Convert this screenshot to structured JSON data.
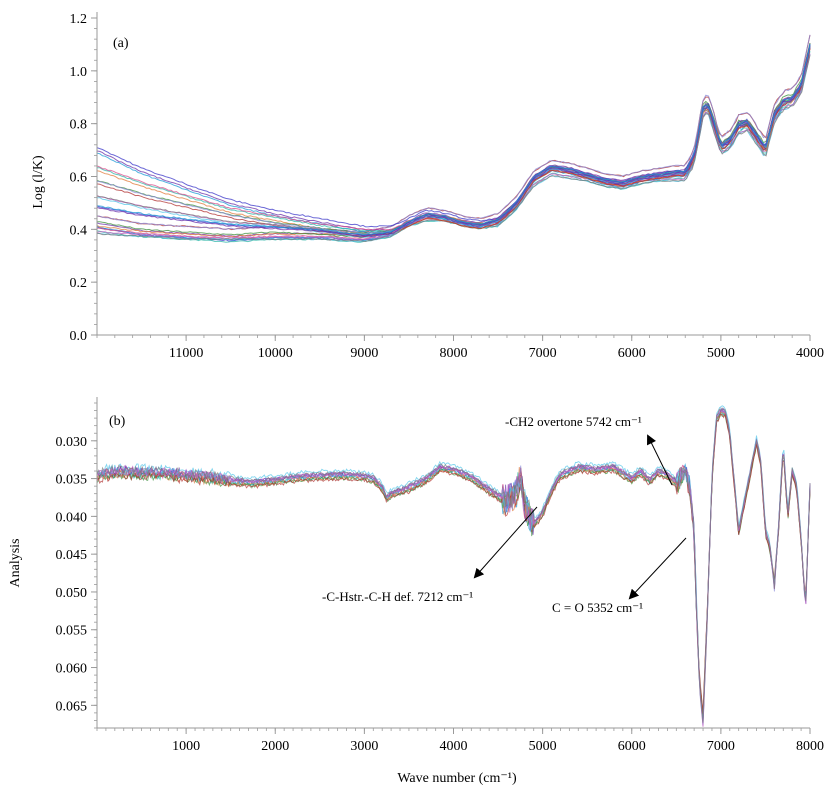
{
  "chart_data": [
    {
      "type": "line",
      "panel_label": "(a)",
      "ylabel": "Log (l/K)",
      "xlabel": "",
      "xlim": [
        12000,
        4000
      ],
      "ylim": [
        0,
        1.2
      ],
      "x_reversed": true,
      "x_ticks": [
        11000,
        10000,
        9000,
        8000,
        7000,
        6000,
        5000,
        4000
      ],
      "x_tick_labels": [
        "11000",
        "10000",
        "9000",
        "8000",
        "7000",
        "6000",
        "5000",
        "4000"
      ],
      "y_ticks": [
        0,
        0.2,
        0.4,
        0.6,
        0.8,
        1.0,
        1.2
      ],
      "y_tick_labels": [
        "0.0",
        "0.2",
        "0.4",
        "0.6",
        "0.8",
        "1.0",
        "1.2"
      ],
      "grid": false,
      "series_description": "Many overlapping NIR spectra (~30 samples)",
      "x": [
        12000,
        11500,
        11000,
        10500,
        10000,
        9500,
        9000,
        8700,
        8500,
        8300,
        8100,
        7900,
        7700,
        7500,
        7300,
        7100,
        6900,
        6700,
        6500,
        6300,
        6100,
        5900,
        5700,
        5500,
        5400,
        5300,
        5200,
        5150,
        5100,
        5000,
        4900,
        4800,
        4700,
        4600,
        4500,
        4400,
        4300,
        4200,
        4100,
        4000
      ],
      "series": [
        {
          "values": [
            0.42,
            0.39,
            0.38,
            0.37,
            0.38,
            0.38,
            0.37,
            0.39,
            0.43,
            0.46,
            0.45,
            0.43,
            0.42,
            0.44,
            0.5,
            0.6,
            0.64,
            0.63,
            0.61,
            0.59,
            0.58,
            0.6,
            0.61,
            0.62,
            0.62,
            0.68,
            0.86,
            0.88,
            0.83,
            0.72,
            0.74,
            0.8,
            0.81,
            0.76,
            0.71,
            0.84,
            0.89,
            0.9,
            0.95,
            1.1
          ]
        },
        {
          "values": [
            0.4,
            0.38,
            0.37,
            0.36,
            0.37,
            0.37,
            0.36,
            0.38,
            0.42,
            0.44,
            0.44,
            0.42,
            0.41,
            0.42,
            0.48,
            0.58,
            0.62,
            0.61,
            0.59,
            0.57,
            0.56,
            0.58,
            0.59,
            0.6,
            0.6,
            0.66,
            0.84,
            0.86,
            0.81,
            0.7,
            0.72,
            0.78,
            0.79,
            0.74,
            0.69,
            0.82,
            0.87,
            0.88,
            0.93,
            1.08
          ]
        },
        {
          "values": [
            0.44,
            0.41,
            0.4,
            0.39,
            0.4,
            0.39,
            0.38,
            0.4,
            0.44,
            0.47,
            0.46,
            0.44,
            0.43,
            0.45,
            0.51,
            0.61,
            0.65,
            0.64,
            0.62,
            0.6,
            0.59,
            0.61,
            0.62,
            0.63,
            0.63,
            0.69,
            0.88,
            0.9,
            0.85,
            0.74,
            0.76,
            0.82,
            0.83,
            0.78,
            0.73,
            0.86,
            0.91,
            0.92,
            0.97,
            1.12
          ]
        },
        {
          "values": [
            0.38,
            0.37,
            0.36,
            0.36,
            0.36,
            0.36,
            0.35,
            0.37,
            0.41,
            0.43,
            0.43,
            0.41,
            0.4,
            0.41,
            0.47,
            0.56,
            0.6,
            0.59,
            0.58,
            0.56,
            0.55,
            0.57,
            0.58,
            0.58,
            0.58,
            0.64,
            0.82,
            0.84,
            0.79,
            0.68,
            0.7,
            0.76,
            0.77,
            0.72,
            0.67,
            0.8,
            0.85,
            0.86,
            0.91,
            1.06
          ]
        },
        {
          "values": [
            0.7,
            0.62,
            0.56,
            0.5,
            0.46,
            0.43,
            0.4,
            0.4,
            0.43,
            0.46,
            0.45,
            0.43,
            0.42,
            0.43,
            0.49,
            0.59,
            0.63,
            0.62,
            0.6,
            0.58,
            0.57,
            0.59,
            0.6,
            0.61,
            0.61,
            0.67,
            0.85,
            0.87,
            0.82,
            0.71,
            0.73,
            0.79,
            0.8,
            0.75,
            0.7,
            0.83,
            0.88,
            0.89,
            0.94,
            1.09
          ]
        },
        {
          "values": [
            0.63,
            0.57,
            0.52,
            0.47,
            0.44,
            0.41,
            0.39,
            0.39,
            0.42,
            0.45,
            0.44,
            0.42,
            0.41,
            0.43,
            0.49,
            0.59,
            0.63,
            0.62,
            0.6,
            0.58,
            0.57,
            0.59,
            0.6,
            0.61,
            0.61,
            0.67,
            0.85,
            0.87,
            0.82,
            0.71,
            0.73,
            0.79,
            0.8,
            0.75,
            0.7,
            0.83,
            0.88,
            0.89,
            0.94,
            1.09
          ]
        },
        {
          "values": [
            0.58,
            0.53,
            0.49,
            0.45,
            0.42,
            0.4,
            0.38,
            0.39,
            0.42,
            0.45,
            0.44,
            0.42,
            0.41,
            0.43,
            0.49,
            0.59,
            0.63,
            0.62,
            0.6,
            0.58,
            0.57,
            0.59,
            0.6,
            0.61,
            0.61,
            0.67,
            0.85,
            0.87,
            0.82,
            0.71,
            0.73,
            0.79,
            0.8,
            0.75,
            0.7,
            0.83,
            0.88,
            0.89,
            0.94,
            1.09
          ]
        },
        {
          "values": [
            0.52,
            0.48,
            0.45,
            0.42,
            0.41,
            0.39,
            0.37,
            0.38,
            0.42,
            0.45,
            0.44,
            0.42,
            0.41,
            0.43,
            0.49,
            0.59,
            0.63,
            0.62,
            0.6,
            0.58,
            0.57,
            0.59,
            0.6,
            0.61,
            0.61,
            0.67,
            0.85,
            0.87,
            0.82,
            0.71,
            0.73,
            0.79,
            0.8,
            0.75,
            0.7,
            0.83,
            0.88,
            0.89,
            0.94,
            1.09
          ]
        },
        {
          "values": [
            0.48,
            0.45,
            0.43,
            0.41,
            0.4,
            0.39,
            0.37,
            0.38,
            0.42,
            0.45,
            0.44,
            0.42,
            0.41,
            0.43,
            0.49,
            0.59,
            0.63,
            0.62,
            0.6,
            0.58,
            0.57,
            0.59,
            0.6,
            0.61,
            0.61,
            0.67,
            0.85,
            0.87,
            0.82,
            0.71,
            0.73,
            0.79,
            0.8,
            0.75,
            0.7,
            0.83,
            0.88,
            0.89,
            0.94,
            1.09
          ]
        }
      ]
    },
    {
      "type": "line",
      "panel_label": "(b)",
      "ylabel": "Analysis",
      "xlabel": "Wave number (cm⁻¹)",
      "xlim": [
        0,
        8000
      ],
      "ylim": [
        0.025,
        0.068
      ],
      "y_reversed": true,
      "x_ticks": [
        1000,
        2000,
        3000,
        4000,
        5000,
        6000,
        7000,
        8000
      ],
      "x_tick_labels": [
        "1000",
        "2000",
        "3000",
        "4000",
        "5000",
        "6000",
        "7000",
        "8000"
      ],
      "y_ticks": [
        0.03,
        0.035,
        0.04,
        0.045,
        0.05,
        0.055,
        0.06,
        0.065
      ],
      "y_tick_labels": [
        "0.030",
        "0.035",
        "0.040",
        "0.045",
        "0.050",
        "0.055",
        "0.060",
        "0.065"
      ],
      "grid": false,
      "series_description": "Many overlapping derivative spectra",
      "x": [
        0,
        250,
        500,
        750,
        1000,
        1250,
        1500,
        1750,
        2000,
        2250,
        2500,
        2750,
        3000,
        3100,
        3200,
        3250,
        3300,
        3500,
        3700,
        3850,
        4000,
        4200,
        4400,
        4600,
        4700,
        4750,
        4800,
        4900,
        5000,
        5100,
        5200,
        5400,
        5600,
        5800,
        6000,
        6100,
        6200,
        6300,
        6400,
        6500,
        6600,
        6650,
        6700,
        6720,
        6760,
        6800,
        6850,
        6900,
        6950,
        7000,
        7050,
        7100,
        7200,
        7300,
        7400,
        7450,
        7500,
        7550,
        7600,
        7650,
        7700,
        7750,
        7800,
        7850,
        7900,
        7950,
        8000
      ],
      "series": [
        {
          "values": [
            0.0345,
            0.034,
            0.0342,
            0.0343,
            0.0345,
            0.0348,
            0.0352,
            0.0355,
            0.0352,
            0.0348,
            0.0346,
            0.0345,
            0.0347,
            0.035,
            0.0362,
            0.0375,
            0.037,
            0.0362,
            0.035,
            0.0335,
            0.0338,
            0.0348,
            0.0365,
            0.038,
            0.037,
            0.0345,
            0.0385,
            0.041,
            0.0395,
            0.0365,
            0.0345,
            0.0335,
            0.0338,
            0.0335,
            0.035,
            0.034,
            0.0352,
            0.034,
            0.0345,
            0.0355,
            0.034,
            0.036,
            0.042,
            0.05,
            0.062,
            0.067,
            0.052,
            0.035,
            0.027,
            0.026,
            0.0262,
            0.029,
            0.042,
            0.036,
            0.03,
            0.033,
            0.042,
            0.044,
            0.049,
            0.041,
            0.0305,
            0.04,
            0.034,
            0.036,
            0.043,
            0.052,
            0.036
          ]
        },
        {
          "values": [
            0.0348,
            0.0343,
            0.0345,
            0.0346,
            0.0348,
            0.0351,
            0.0355,
            0.0358,
            0.0355,
            0.0351,
            0.0349,
            0.0348,
            0.035,
            0.0353,
            0.0365,
            0.0378,
            0.0373,
            0.0365,
            0.0353,
            0.0338,
            0.0341,
            0.0351,
            0.0368,
            0.0383,
            0.0373,
            0.0348,
            0.0388,
            0.0413,
            0.0398,
            0.0368,
            0.0348,
            0.0338,
            0.0341,
            0.0338,
            0.0353,
            0.0343,
            0.0355,
            0.0343,
            0.0348,
            0.0358,
            0.0343,
            0.0363,
            0.0423,
            0.0503,
            0.0615,
            0.066,
            0.0515,
            0.0353,
            0.0273,
            0.0263,
            0.0265,
            0.0293,
            0.0423,
            0.0363,
            0.0303,
            0.0333,
            0.0423,
            0.0443,
            0.0485,
            0.0413,
            0.0308,
            0.0403,
            0.0343,
            0.0363,
            0.0433,
            0.0515,
            0.0363
          ]
        },
        {
          "values": [
            0.0342,
            0.0337,
            0.0339,
            0.034,
            0.0342,
            0.0345,
            0.0349,
            0.0352,
            0.0349,
            0.0345,
            0.0343,
            0.0342,
            0.0344,
            0.0347,
            0.0359,
            0.0372,
            0.0367,
            0.0359,
            0.0347,
            0.0332,
            0.0335,
            0.0345,
            0.0362,
            0.0377,
            0.0367,
            0.0342,
            0.0382,
            0.0407,
            0.0392,
            0.0362,
            0.0342,
            0.0332,
            0.0335,
            0.0332,
            0.0347,
            0.0337,
            0.0349,
            0.0337,
            0.0342,
            0.0352,
            0.0337,
            0.0357,
            0.0417,
            0.0497,
            0.0625,
            0.0675,
            0.0525,
            0.0347,
            0.0267,
            0.0257,
            0.0259,
            0.0287,
            0.0417,
            0.0357,
            0.0297,
            0.0327,
            0.0417,
            0.0437,
            0.0495,
            0.0407,
            0.0302,
            0.0397,
            0.0337,
            0.0357,
            0.0427,
            0.0525,
            0.0357
          ]
        }
      ],
      "annotations": [
        {
          "text": "-CH2 overtone 5742 cm⁻¹"
        },
        {
          "text": "-C-Hstr.-C-H def. 7212 cm⁻¹"
        },
        {
          "text": "C = O 5352 cm⁻¹"
        }
      ]
    }
  ],
  "colors": {
    "axis": "#9a9a9a",
    "palette": [
      "#3a36c8",
      "#6a2fa8",
      "#1a9ad6",
      "#2cb7a7",
      "#d84a8a",
      "#e07a3a",
      "#3c8f3c",
      "#b03030",
      "#8a8ad8",
      "#4ec4e8",
      "#c05ac0",
      "#7a7a7a"
    ]
  }
}
